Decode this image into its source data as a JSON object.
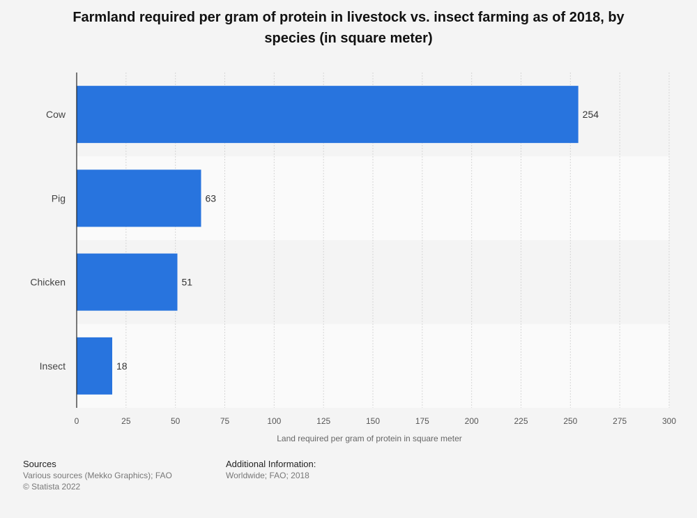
{
  "chart_data": {
    "type": "bar",
    "orientation": "horizontal",
    "title": "Farmland required per gram of protein in livestock vs. insect farming as of 2018, by species (in square meter)",
    "categories": [
      "Cow",
      "Pig",
      "Chicken",
      "Insect"
    ],
    "values": [
      254,
      63,
      51,
      18
    ],
    "xlabel": "Land required per gram of protein in square meter",
    "ylabel": "",
    "xlim": [
      0,
      300
    ],
    "ticks": [
      0,
      25,
      50,
      75,
      100,
      125,
      150,
      175,
      200,
      225,
      250,
      275,
      300
    ],
    "grid": true,
    "bar_color": "#2874de"
  },
  "footer": {
    "sources_heading": "Sources",
    "sources_line1": "Various sources (Mekko Graphics); FAO",
    "sources_line2": "© Statista 2022",
    "info_heading": "Additional Information:",
    "info_line1": "Worldwide; FAO; 2018"
  }
}
